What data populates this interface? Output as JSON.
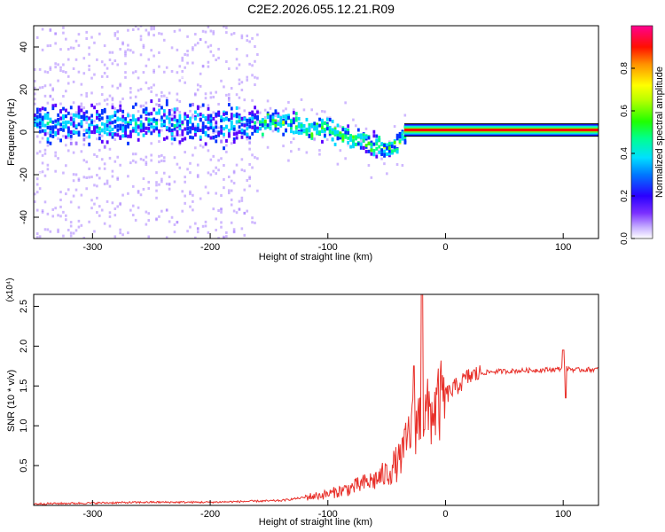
{
  "title": "C2E2.2026.055.12.21.R09",
  "chart_data": [
    {
      "type": "heatmap",
      "xlabel": "Height of straight line (km)",
      "ylabel": "Frequency (Hz)",
      "xlim": [
        -350,
        130
      ],
      "ylim": [
        -50,
        50
      ],
      "xticks": [
        -300,
        -200,
        -100,
        0,
        100
      ],
      "yticks": [
        -40,
        -20,
        0,
        20,
        40
      ],
      "grid": false,
      "colorbar": {
        "label": "Normalized spectral amplitude",
        "range": [
          0,
          1
        ],
        "ticks": [
          0.0,
          0.2,
          0.4,
          0.6,
          0.8
        ],
        "colors": [
          "#ffffff",
          "#a77dff",
          "#5a00ff",
          "#0032ff",
          "#00d8ff",
          "#00ff80",
          "#40ff00",
          "#c8ff00",
          "#ffff00",
          "#ff8000",
          "#ff0000",
          "#ff0080"
        ]
      },
      "centerline": [
        {
          "x": -350,
          "y": 5
        },
        {
          "x": -300,
          "y": 4
        },
        {
          "x": -250,
          "y": 4
        },
        {
          "x": -200,
          "y": 3
        },
        {
          "x": -160,
          "y": 4
        },
        {
          "x": -140,
          "y": 5
        },
        {
          "x": -120,
          "y": 2
        },
        {
          "x": -100,
          "y": 1
        },
        {
          "x": -80,
          "y": -3
        },
        {
          "x": -60,
          "y": -6
        },
        {
          "x": -45,
          "y": -8
        },
        {
          "x": -38,
          "y": -3
        },
        {
          "x": -32,
          "y": 3
        },
        {
          "x": -25,
          "y": 2
        },
        {
          "x": -15,
          "y": 1
        },
        {
          "x": 0,
          "y": 1
        },
        {
          "x": 130,
          "y": 1
        }
      ],
      "tone_band": {
        "x_start": -35,
        "x_end": 130,
        "y": 1,
        "level": 0.95
      }
    },
    {
      "type": "line",
      "xlabel": "Height of straight line (km)",
      "ylabel": "SNR (10 * v/v)",
      "y_multiplier": "(x10⁴)",
      "xlim": [
        -350,
        130
      ],
      "ylim": [
        0,
        2.65
      ],
      "xticks": [
        -300,
        -200,
        -100,
        0,
        100
      ],
      "yticks": [
        0.5,
        1.0,
        1.5,
        2.0,
        2.5
      ],
      "ytick_labels": [
        "0.5",
        "1.0",
        "1.5",
        "2.0",
        "2.5"
      ],
      "grid": false,
      "color": "#e8302a",
      "series": [
        {
          "x": [
            -350,
            -300,
            -250,
            -200,
            -170,
            -140,
            -120,
            -100,
            -80,
            -60,
            -50,
            -40,
            -35,
            -30,
            -25,
            -20,
            -15,
            -10,
            -5,
            0,
            10,
            20,
            30,
            40,
            60,
            80,
            95,
            100,
            105,
            110,
            130
          ],
          "y": [
            0.02,
            0.03,
            0.04,
            0.04,
            0.05,
            0.06,
            0.1,
            0.14,
            0.22,
            0.32,
            0.4,
            0.55,
            0.7,
            0.95,
            1.05,
            1.1,
            1.15,
            1.2,
            1.28,
            1.38,
            1.5,
            1.62,
            1.66,
            1.68,
            1.69,
            1.7,
            1.71,
            1.72,
            1.72,
            1.7,
            1.71
          ]
        }
      ],
      "spikes": [
        {
          "x": -20,
          "y": 2.65
        },
        {
          "x": -27,
          "y": 1.75
        },
        {
          "x": 100,
          "y": 1.95
        },
        {
          "x": 102,
          "y": 1.35
        }
      ]
    }
  ]
}
